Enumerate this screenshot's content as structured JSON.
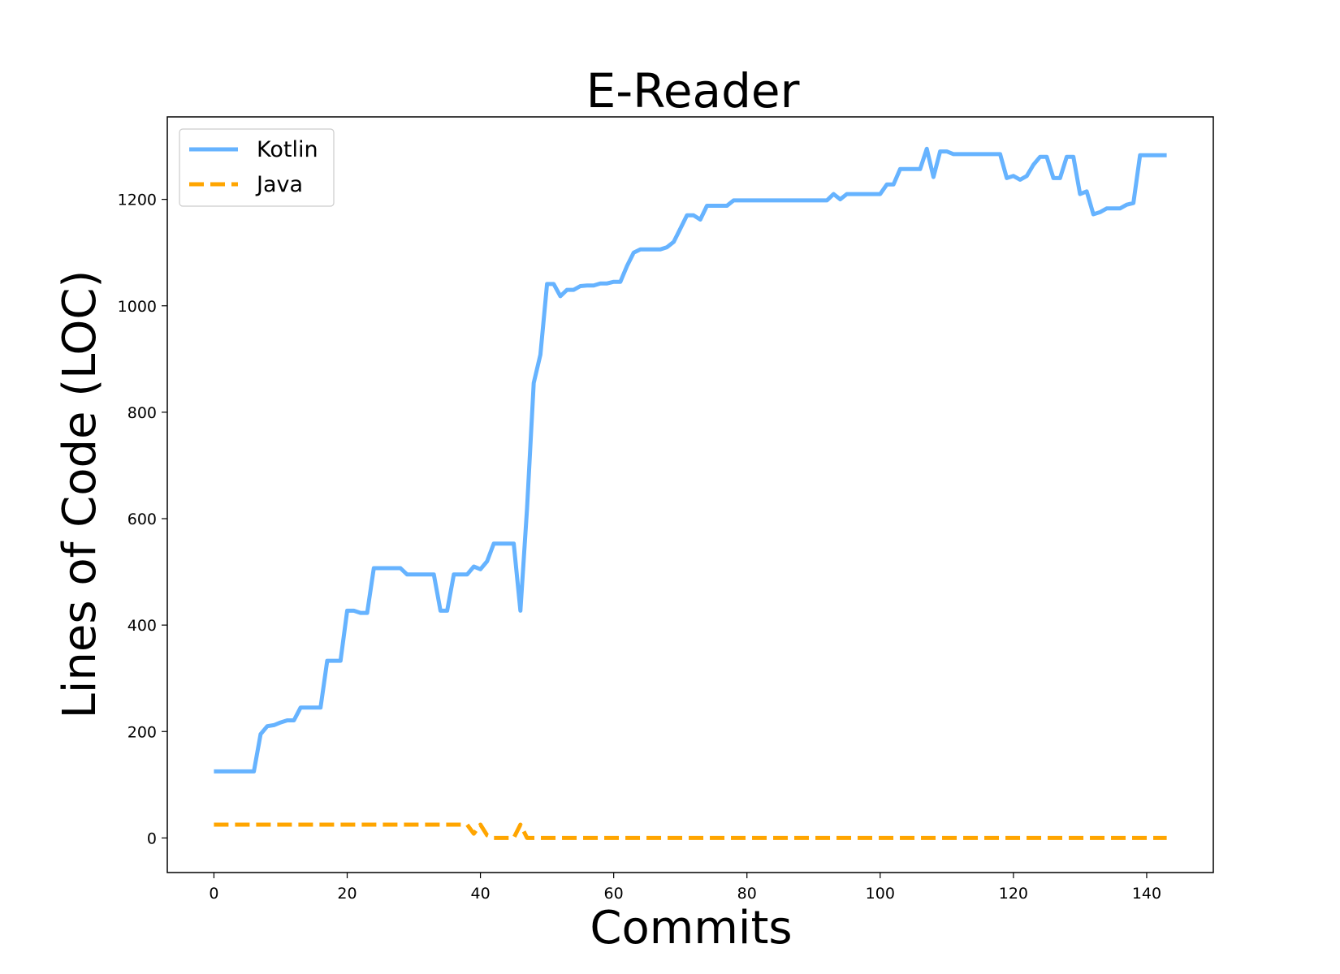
{
  "chart_data": {
    "type": "line",
    "title": "E-Reader",
    "xlabel": "Commits",
    "ylabel": "Lines of Code (LOC)",
    "xlim": [
      -7,
      150
    ],
    "ylim": [
      -65,
      1355
    ],
    "xticks": [
      0,
      20,
      40,
      60,
      80,
      100,
      120,
      140
    ],
    "yticks": [
      0,
      200,
      400,
      600,
      800,
      1000,
      1200
    ],
    "legend_position": "top-left",
    "grid": false,
    "series": [
      {
        "name": "Kotlin",
        "color": "#66b3ff",
        "style": "solid",
        "points": [
          [
            0,
            125
          ],
          [
            6,
            125
          ],
          [
            7,
            195
          ],
          [
            8,
            210
          ],
          [
            9,
            212
          ],
          [
            10,
            217
          ],
          [
            11,
            221
          ],
          [
            12,
            221
          ],
          [
            13,
            245
          ],
          [
            16,
            245
          ],
          [
            17,
            333
          ],
          [
            19,
            333
          ],
          [
            20,
            427
          ],
          [
            21,
            427
          ],
          [
            22,
            423
          ],
          [
            23,
            423
          ],
          [
            24,
            507
          ],
          [
            28,
            507
          ],
          [
            29,
            495
          ],
          [
            33,
            495
          ],
          [
            34,
            427
          ],
          [
            35,
            427
          ],
          [
            36,
            495
          ],
          [
            38,
            495
          ],
          [
            39,
            510
          ],
          [
            40,
            505
          ],
          [
            41,
            520
          ],
          [
            42,
            553
          ],
          [
            45,
            553
          ],
          [
            46,
            427
          ],
          [
            47,
            620
          ],
          [
            48,
            855
          ],
          [
            49,
            908
          ],
          [
            50,
            1041
          ],
          [
            51,
            1041
          ],
          [
            52,
            1018
          ],
          [
            53,
            1030
          ],
          [
            54,
            1030
          ],
          [
            55,
            1037
          ],
          [
            56,
            1038
          ],
          [
            57,
            1038
          ],
          [
            58,
            1042
          ],
          [
            59,
            1042
          ],
          [
            60,
            1045
          ],
          [
            61,
            1045
          ],
          [
            62,
            1075
          ],
          [
            63,
            1100
          ],
          [
            64,
            1106
          ],
          [
            67,
            1106
          ],
          [
            68,
            1110
          ],
          [
            69,
            1120
          ],
          [
            70,
            1145
          ],
          [
            71,
            1170
          ],
          [
            72,
            1170
          ],
          [
            73,
            1162
          ],
          [
            74,
            1188
          ],
          [
            77,
            1188
          ],
          [
            78,
            1198
          ],
          [
            92,
            1198
          ],
          [
            93,
            1210
          ],
          [
            94,
            1200
          ],
          [
            95,
            1210
          ],
          [
            100,
            1210
          ],
          [
            101,
            1228
          ],
          [
            102,
            1228
          ],
          [
            103,
            1257
          ],
          [
            106,
            1257
          ],
          [
            107,
            1295
          ],
          [
            108,
            1242
          ],
          [
            109,
            1290
          ],
          [
            110,
            1290
          ],
          [
            111,
            1285
          ],
          [
            118,
            1285
          ],
          [
            119,
            1240
          ],
          [
            120,
            1244
          ],
          [
            121,
            1237
          ],
          [
            122,
            1244
          ],
          [
            123,
            1265
          ],
          [
            124,
            1280
          ],
          [
            125,
            1280
          ],
          [
            126,
            1240
          ],
          [
            127,
            1240
          ],
          [
            128,
            1280
          ],
          [
            129,
            1280
          ],
          [
            130,
            1210
          ],
          [
            131,
            1215
          ],
          [
            132,
            1172
          ],
          [
            133,
            1176
          ],
          [
            134,
            1183
          ],
          [
            136,
            1183
          ],
          [
            137,
            1190
          ],
          [
            138,
            1193
          ],
          [
            139,
            1283
          ],
          [
            143,
            1283
          ]
        ]
      },
      {
        "name": "Java",
        "color": "#ffa500",
        "style": "dashed",
        "points": [
          [
            0,
            25
          ],
          [
            38,
            25
          ],
          [
            39,
            8
          ],
          [
            40,
            25
          ],
          [
            41,
            5
          ],
          [
            42,
            0
          ],
          [
            45,
            0
          ],
          [
            46,
            25
          ],
          [
            47,
            0
          ],
          [
            143,
            0
          ]
        ]
      }
    ]
  }
}
